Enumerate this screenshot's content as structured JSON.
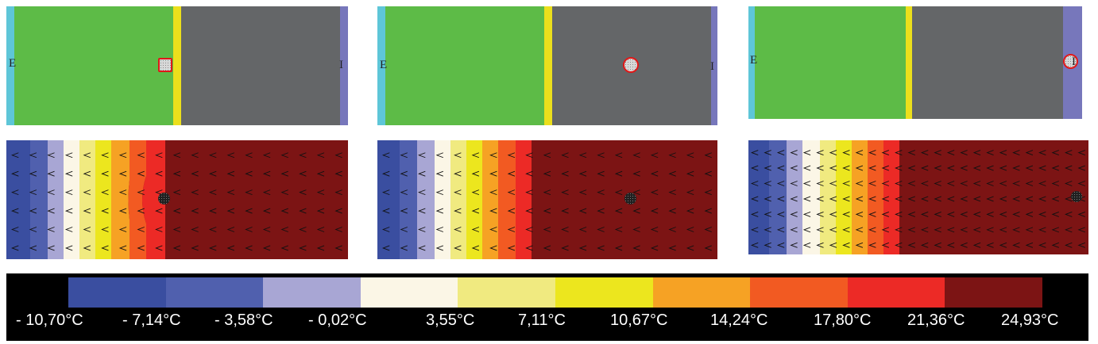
{
  "wall_labels": {
    "exterior": "E",
    "interior": "I"
  },
  "colors": {
    "cyan_layer": "#5ec6d8",
    "green_layer": "#5dbb47",
    "yellow_layer": "#ecdf1c",
    "gray_layer": "#646668",
    "violet_layer": "#7777bb",
    "marker_border": "#e01818"
  },
  "legend": {
    "colors": [
      "#3a4ea0",
      "#5060ae",
      "#a8a6d4",
      "#fbf6e6",
      "#f0ea80",
      "#ece61e",
      "#f6a224",
      "#f25a22",
      "#ec2a26",
      "#7c1414"
    ],
    "labels": [
      "- 10,70°C",
      "- 7,14°C",
      "- 3,58°C",
      "- 0,02°C",
      "3,55°C",
      "7,11°C",
      "10,67°C",
      "14,24°C",
      "17,80°C",
      "21,36°C",
      "24,93°C"
    ]
  }
}
